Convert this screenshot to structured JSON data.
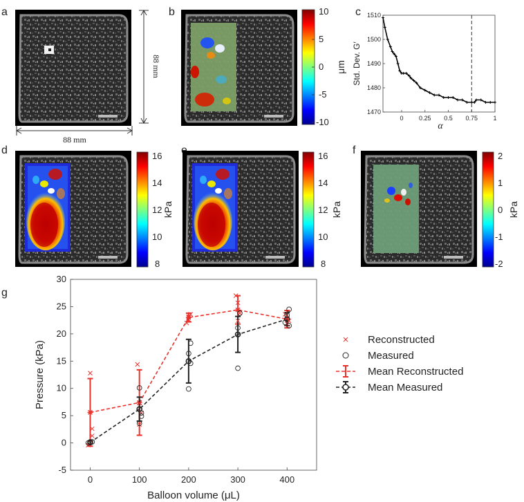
{
  "panels": {
    "a": {
      "label": "a",
      "dim_horizontal": "88 mm",
      "dim_vertical": "88 mm"
    },
    "b": {
      "label": "b",
      "colorbar": {
        "ticks": [
          "10",
          "5",
          "0",
          "-5",
          "-10"
        ],
        "unit": "μm"
      }
    },
    "c": {
      "label": "c"
    },
    "d": {
      "label": "d",
      "colorbar": {
        "ticks": [
          "16",
          "14",
          "12",
          "10",
          "8"
        ],
        "unit": "kPa"
      }
    },
    "e": {
      "label": "e",
      "colorbar": {
        "ticks": [
          "16",
          "14",
          "12",
          "10",
          "8"
        ],
        "unit": "kPa"
      }
    },
    "f": {
      "label": "f",
      "colorbar": {
        "ticks": [
          "2",
          "1",
          "0",
          "-1",
          "-2"
        ],
        "unit": "kPa"
      }
    },
    "g": {
      "label": "g"
    }
  },
  "chart_data": [
    {
      "id": "c",
      "type": "line",
      "xlabel": "α",
      "ylabel": "Std. Dev. G′",
      "xlim": [
        -0.2,
        1.0
      ],
      "ylim": [
        1470,
        1510
      ],
      "xticks": [
        0,
        0.25,
        0.5,
        0.75,
        1
      ],
      "xtick_labels": [
        "0",
        "0.25",
        "0.5",
        "0.75",
        "1"
      ],
      "yticks": [
        1470,
        1480,
        1490,
        1500,
        1510
      ],
      "ytick_labels": [
        "1470",
        "1480",
        "1490",
        "1500",
        "1510"
      ],
      "vline_x": 0.75,
      "x": [
        -0.2,
        -0.18,
        -0.15,
        -0.12,
        -0.1,
        -0.08,
        -0.06,
        -0.04,
        -0.02,
        0,
        0.02,
        0.05,
        0.08,
        0.1,
        0.13,
        0.16,
        0.2,
        0.25,
        0.3,
        0.35,
        0.4,
        0.45,
        0.5,
        0.55,
        0.6,
        0.65,
        0.7,
        0.75,
        0.78,
        0.8,
        0.85,
        0.9,
        0.95,
        1.0
      ],
      "y": [
        1509,
        1505,
        1500,
        1497,
        1495,
        1494,
        1493,
        1490,
        1487,
        1486,
        1486,
        1486,
        1485,
        1484,
        1483,
        1482,
        1480,
        1479,
        1478,
        1477,
        1477,
        1476,
        1476,
        1476,
        1475,
        1475,
        1474,
        1474,
        1474,
        1475,
        1475,
        1474,
        1474,
        1474
      ]
    },
    {
      "id": "g",
      "type": "scatter",
      "xlabel": "Balloon volume (μL)",
      "ylabel": "Pressure (kPa)",
      "xlim": [
        -40,
        460
      ],
      "ylim": [
        -5,
        30
      ],
      "xticks": [
        0,
        100,
        200,
        300,
        400
      ],
      "xtick_labels": [
        "0",
        "100",
        "200",
        "300",
        "400"
      ],
      "yticks": [
        -5,
        0,
        5,
        10,
        15,
        20,
        25,
        30
      ],
      "ytick_labels": [
        "-5",
        "0",
        "5",
        "10",
        "15",
        "20",
        "25",
        "30"
      ],
      "categories": [
        0,
        100,
        200,
        300,
        400
      ],
      "series": [
        {
          "name": "Reconstructed",
          "marker": "x",
          "color": "#e8322c",
          "points": [
            [
              0,
              12.8
            ],
            [
              4,
              2.6
            ],
            [
              4,
              1.3
            ],
            [
              0,
              0.1
            ],
            [
              -4,
              -0.4
            ],
            [
              96,
              14.4
            ],
            [
              100,
              7.3
            ],
            [
              104,
              5.5
            ],
            [
              100,
              3.4
            ],
            [
              196,
              22.0
            ],
            [
              200,
              23.2
            ],
            [
              204,
              23.6
            ],
            [
              200,
              22.6
            ],
            [
              296,
              27.0
            ],
            [
              300,
              25.7
            ],
            [
              304,
              23.8
            ],
            [
              300,
              22.4
            ],
            [
              396,
              23.6
            ],
            [
              400,
              22.9
            ],
            [
              404,
              22.4
            ],
            [
              400,
              21.8
            ]
          ]
        },
        {
          "name": "Measured",
          "marker": "o",
          "color": "#222222",
          "points": [
            [
              0,
              0.2
            ],
            [
              4,
              0.2
            ],
            [
              0,
              0.1
            ],
            [
              -4,
              0.0
            ],
            [
              100,
              10.1
            ],
            [
              104,
              5.5
            ],
            [
              104,
              4.9
            ],
            [
              100,
              3.6
            ],
            [
              204,
              18.3
            ],
            [
              200,
              16.4
            ],
            [
              204,
              14.6
            ],
            [
              200,
              9.9
            ],
            [
              304,
              23.8
            ],
            [
              300,
              21.1
            ],
            [
              300,
              19.9
            ],
            [
              300,
              13.7
            ],
            [
              404,
              24.5
            ],
            [
              400,
              23.4
            ],
            [
              396,
              22.1
            ],
            [
              404,
              21.5
            ]
          ]
        },
        {
          "name": "Mean Reconstructed",
          "color": "#e8322c",
          "x": [
            0,
            100,
            200,
            300,
            400
          ],
          "values": [
            5.6,
            7.4,
            23.0,
            24.4,
            22.7
          ],
          "err": [
            6.2,
            6.0,
            0.8,
            2.6,
            1.6
          ]
        },
        {
          "name": "Mean Measured",
          "color": "#222222",
          "x": [
            0,
            100,
            200,
            300,
            400
          ],
          "values": [
            0.1,
            6.2,
            15.0,
            19.9,
            22.7
          ],
          "err": [
            0.2,
            2.2,
            4.0,
            3.3,
            1.2
          ]
        }
      ]
    }
  ]
}
